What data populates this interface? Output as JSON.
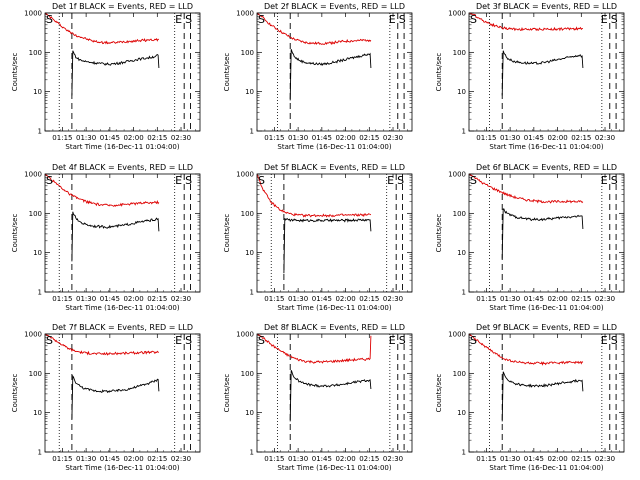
{
  "colors": {
    "events": "#000000",
    "lld": "#dd0000",
    "axis": "#000000"
  },
  "common": {
    "xlabel": "Start Time (16-Dec-11 01:04:00)",
    "ylabel": "Counts/sec",
    "x_tick_labels": [
      "01:15",
      "01:30",
      "01:45",
      "02:00",
      "02:15",
      "02:30"
    ],
    "x_tick_minutes": [
      11,
      26,
      41,
      56,
      71,
      86
    ],
    "xlim_minutes": [
      0,
      98
    ],
    "y_scale": "log",
    "ylim": [
      1,
      1000
    ],
    "y_tick_labels": [
      "1",
      "10",
      "100",
      "1000"
    ],
    "y_tick_values": [
      1,
      10,
      100,
      1000
    ]
  },
  "chart_data": [
    {
      "type": "line",
      "title": "Det 1f BLACK = Events, RED = LLD",
      "markers": {
        "start": "S",
        "end": "E",
        "end2": "S"
      },
      "dotted_lines_x": [
        9,
        82
      ],
      "dashed_lines_x": [
        17,
        88,
        92
      ],
      "series": [
        {
          "color": "lld",
          "x": [
            0,
            3,
            6,
            9,
            12,
            15,
            18,
            22,
            26,
            30,
            35,
            40,
            45,
            50,
            55,
            60,
            65,
            70,
            72
          ],
          "y": [
            1000,
            820,
            640,
            520,
            420,
            340,
            290,
            250,
            220,
            195,
            180,
            175,
            178,
            185,
            195,
            200,
            205,
            210,
            212
          ]
        },
        {
          "color": "events",
          "x": [
            17,
            17.6,
            18.5,
            20,
            23,
            26,
            30,
            35,
            40,
            45,
            50,
            55,
            60,
            65,
            70,
            71.5,
            72
          ],
          "y": [
            8,
            110,
            90,
            72,
            62,
            58,
            55,
            52,
            50,
            52,
            56,
            62,
            68,
            72,
            80,
            85,
            40
          ]
        }
      ]
    },
    {
      "type": "line",
      "title": "Det 2f BLACK = Events, RED = LLD",
      "markers": {
        "start": "S",
        "end": "E",
        "end2": "S"
      },
      "dotted_lines_x": [
        13,
        84
      ],
      "dashed_lines_x": [
        21,
        89,
        93
      ],
      "series": [
        {
          "color": "lld",
          "x": [
            0,
            3,
            6,
            9,
            13,
            17,
            21,
            25,
            30,
            35,
            40,
            45,
            50,
            55,
            60,
            65,
            70,
            72
          ],
          "y": [
            1000,
            800,
            620,
            490,
            380,
            300,
            240,
            205,
            180,
            170,
            168,
            172,
            180,
            190,
            195,
            200,
            205,
            205
          ]
        },
        {
          "color": "events",
          "x": [
            21,
            21.6,
            22.5,
            24,
            27,
            30,
            35,
            40,
            45,
            50,
            55,
            60,
            65,
            70,
            71.5,
            72
          ],
          "y": [
            6,
            120,
            95,
            75,
            62,
            56,
            52,
            50,
            52,
            58,
            64,
            72,
            80,
            90,
            92,
            40
          ]
        }
      ]
    },
    {
      "type": "line",
      "title": "Det 3f BLACK = Events, RED = LLD",
      "markers": {
        "start": "S",
        "end": "E",
        "end2": "S"
      },
      "dotted_lines_x": [
        13,
        84
      ],
      "dashed_lines_x": [
        21,
        89,
        93
      ],
      "series": [
        {
          "color": "lld",
          "x": [
            0,
            3,
            6,
            9,
            13,
            17,
            21,
            25,
            30,
            35,
            40,
            45,
            50,
            55,
            60,
            65,
            70,
            72
          ],
          "y": [
            1000,
            900,
            760,
            640,
            540,
            470,
            420,
            400,
            390,
            385,
            385,
            388,
            390,
            392,
            395,
            398,
            400,
            400
          ]
        },
        {
          "color": "events",
          "x": [
            21,
            21.6,
            22.5,
            24,
            27,
            30,
            35,
            40,
            45,
            50,
            55,
            60,
            65,
            70,
            71.5,
            72
          ],
          "y": [
            8,
            110,
            90,
            72,
            62,
            57,
            54,
            52,
            53,
            58,
            64,
            70,
            78,
            85,
            80,
            40
          ]
        }
      ]
    },
    {
      "type": "line",
      "title": "Det 4f BLACK = Events, RED = LLD",
      "markers": {
        "start": "S",
        "end": "E",
        "end2": "S"
      },
      "dotted_lines_x": [
        9,
        82
      ],
      "dashed_lines_x": [
        17,
        88,
        92
      ],
      "series": [
        {
          "color": "lld",
          "x": [
            0,
            3,
            6,
            9,
            12,
            15,
            18,
            22,
            26,
            30,
            35,
            40,
            45,
            50,
            55,
            60,
            65,
            70,
            72
          ],
          "y": [
            1000,
            800,
            620,
            500,
            400,
            320,
            270,
            230,
            200,
            180,
            165,
            160,
            162,
            168,
            175,
            180,
            185,
            190,
            190
          ]
        },
        {
          "color": "events",
          "x": [
            17,
            17.6,
            18.5,
            20,
            23,
            26,
            30,
            35,
            40,
            45,
            50,
            55,
            60,
            65,
            70,
            71.5,
            72
          ],
          "y": [
            6,
            110,
            90,
            70,
            58,
            52,
            48,
            46,
            45,
            47,
            50,
            55,
            60,
            65,
            70,
            72,
            35
          ]
        }
      ]
    },
    {
      "type": "line",
      "title": "Det 5f BLACK = Events, RED = LLD",
      "markers": {
        "start": "S",
        "end": "E",
        "end2": "S"
      },
      "dotted_lines_x": [
        9,
        82
      ],
      "dashed_lines_x": [
        17,
        88,
        92
      ],
      "series": [
        {
          "color": "lld",
          "x": [
            0,
            1.5,
            3,
            5,
            7,
            9,
            12,
            15,
            18,
            22,
            26,
            30,
            35,
            40,
            45,
            50,
            55,
            60,
            65,
            70,
            72
          ],
          "y": [
            1000,
            700,
            480,
            340,
            250,
            190,
            150,
            120,
            105,
            95,
            90,
            88,
            88,
            88,
            88,
            89,
            90,
            90,
            91,
            92,
            92
          ]
        },
        {
          "color": "events",
          "x": [
            17,
            17.6,
            18.5,
            20,
            23,
            26,
            30,
            35,
            40,
            45,
            50,
            55,
            60,
            65,
            70,
            71.5,
            72
          ],
          "y": [
            3,
            75,
            70,
            68,
            67,
            66,
            66,
            66,
            66,
            66,
            66,
            66,
            67,
            68,
            68,
            68,
            35
          ]
        }
      ]
    },
    {
      "type": "line",
      "title": "Det 6f BLACK = Events, RED = LLD",
      "markers": {
        "start": "S",
        "end": "E",
        "end2": "S"
      },
      "dotted_lines_x": [
        13,
        84
      ],
      "dashed_lines_x": [
        21,
        89,
        93
      ],
      "series": [
        {
          "color": "lld",
          "x": [
            0,
            3,
            6,
            9,
            13,
            17,
            21,
            25,
            30,
            35,
            40,
            45,
            50,
            55,
            60,
            65,
            70,
            72
          ],
          "y": [
            1000,
            850,
            700,
            580,
            480,
            400,
            340,
            290,
            250,
            225,
            210,
            200,
            198,
            198,
            200,
            200,
            198,
            198
          ]
        },
        {
          "color": "events",
          "x": [
            21,
            21.6,
            22.5,
            24,
            27,
            30,
            35,
            40,
            45,
            50,
            55,
            60,
            65,
            70,
            71.5,
            72
          ],
          "y": [
            7,
            130,
            115,
            100,
            88,
            80,
            74,
            70,
            70,
            72,
            75,
            80,
            82,
            85,
            85,
            40
          ]
        }
      ]
    },
    {
      "type": "line",
      "title": "Det 7f BLACK = Events, RED = LLD",
      "markers": {
        "start": "S",
        "end": "E",
        "end2": "S"
      },
      "dotted_lines_x": [
        9,
        82
      ],
      "dashed_lines_x": [
        17,
        88,
        92
      ],
      "series": [
        {
          "color": "lld",
          "x": [
            0,
            3,
            6,
            9,
            12,
            15,
            18,
            22,
            26,
            30,
            35,
            40,
            45,
            50,
            55,
            60,
            65,
            70,
            72
          ],
          "y": [
            1000,
            860,
            720,
            600,
            500,
            430,
            380,
            350,
            330,
            320,
            315,
            315,
            320,
            325,
            330,
            335,
            340,
            345,
            345
          ]
        },
        {
          "color": "events",
          "x": [
            17,
            17.6,
            18.5,
            20,
            23,
            26,
            30,
            35,
            40,
            45,
            50,
            55,
            60,
            65,
            70,
            71.5,
            72
          ],
          "y": [
            7,
            85,
            70,
            55,
            45,
            40,
            37,
            35,
            35,
            36,
            38,
            42,
            48,
            55,
            65,
            70,
            35
          ]
        }
      ]
    },
    {
      "type": "line",
      "title": "Det 8f BLACK = Events, RED = LLD",
      "markers": {
        "start": "S",
        "end": "E",
        "end2": "S"
      },
      "dotted_lines_x": [
        13,
        84
      ],
      "dashed_lines_x": [
        21,
        89,
        93
      ],
      "series": [
        {
          "color": "lld",
          "x": [
            0,
            3,
            6,
            9,
            13,
            17,
            21,
            25,
            30,
            35,
            40,
            45,
            50,
            55,
            60,
            65,
            70,
            71.5,
            72
          ],
          "y": [
            1000,
            850,
            680,
            540,
            420,
            330,
            270,
            230,
            205,
            195,
            195,
            198,
            205,
            212,
            220,
            225,
            230,
            235,
            900
          ]
        },
        {
          "color": "events",
          "x": [
            21,
            21.6,
            22.5,
            24,
            27,
            30,
            35,
            40,
            45,
            50,
            55,
            60,
            65,
            70,
            71.5,
            72
          ],
          "y": [
            6,
            120,
            95,
            75,
            62,
            55,
            50,
            48,
            48,
            50,
            53,
            58,
            62,
            66,
            68,
            40
          ]
        }
      ]
    },
    {
      "type": "line",
      "title": "Det 9f BLACK = Events, RED = LLD",
      "markers": {
        "start": "S",
        "end": "E",
        "end2": "S"
      },
      "dotted_lines_x": [
        13,
        84
      ],
      "dashed_lines_x": [
        21,
        89,
        93
      ],
      "series": [
        {
          "color": "lld",
          "x": [
            0,
            3,
            6,
            9,
            13,
            17,
            21,
            25,
            30,
            35,
            40,
            45,
            50,
            55,
            60,
            65,
            70,
            72
          ],
          "y": [
            1000,
            820,
            650,
            520,
            400,
            310,
            250,
            215,
            195,
            185,
            180,
            180,
            182,
            185,
            188,
            188,
            190,
            190
          ]
        },
        {
          "color": "events",
          "x": [
            21,
            21.6,
            22.5,
            24,
            27,
            30,
            35,
            40,
            45,
            50,
            55,
            60,
            65,
            70,
            71.5,
            72
          ],
          "y": [
            6,
            110,
            90,
            72,
            60,
            54,
            50,
            48,
            48,
            50,
            54,
            58,
            62,
            66,
            66,
            35
          ]
        }
      ]
    }
  ]
}
